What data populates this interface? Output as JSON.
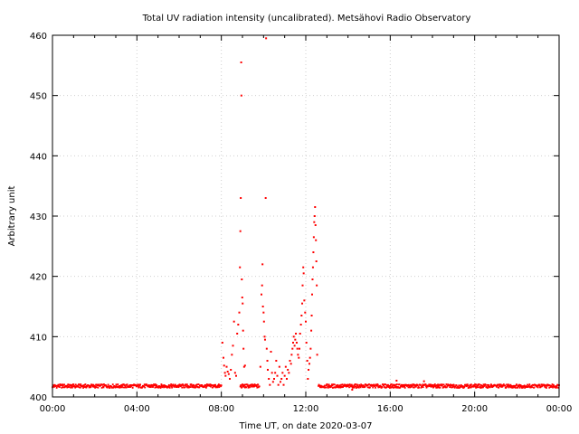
{
  "chart_data": {
    "type": "scatter",
    "title": "Total UV radiation intensity (uncalibrated). Metsähovi Radio Observatory",
    "xlabel": "Time UT, on date 2020-03-07",
    "ylabel": "Arbitrary unit",
    "xlim": [
      0,
      24
    ],
    "ylim": [
      400,
      460
    ],
    "x_ticks": [
      0,
      4,
      8,
      12,
      16,
      20,
      24
    ],
    "x_tick_labels": [
      "00:00",
      "04:00",
      "08:00",
      "12:00",
      "16:00",
      "20:00",
      "00:00"
    ],
    "y_ticks": [
      400,
      410,
      420,
      430,
      440,
      450,
      460
    ],
    "y_tick_labels": [
      "400",
      "410",
      "420",
      "430",
      "440",
      "450",
      "460"
    ],
    "grid": true,
    "marker_color": "#ff0000",
    "series": [
      {
        "baseline": 401.8,
        "baseline_ranges": [
          [
            0,
            8.0
          ],
          [
            8.9,
            9.8
          ],
          [
            12.6,
            24
          ]
        ],
        "x_unit": "hours",
        "points": [
          [
            8.05,
            409.0
          ],
          [
            8.1,
            406.5
          ],
          [
            8.13,
            405.2
          ],
          [
            8.17,
            404.0
          ],
          [
            8.2,
            403.5
          ],
          [
            8.25,
            405.0
          ],
          [
            8.3,
            404.2
          ],
          [
            8.35,
            403.8
          ],
          [
            8.4,
            403.0
          ],
          [
            8.45,
            404.5
          ],
          [
            8.5,
            407.0
          ],
          [
            8.55,
            408.5
          ],
          [
            8.6,
            412.5
          ],
          [
            8.65,
            404.0
          ],
          [
            8.7,
            403.5
          ],
          [
            8.75,
            410.5
          ],
          [
            8.8,
            412.0
          ],
          [
            8.85,
            414.0
          ],
          [
            8.88,
            421.5
          ],
          [
            8.9,
            427.5
          ],
          [
            8.92,
            433.0
          ],
          [
            8.94,
            455.5
          ],
          [
            8.95,
            450.0
          ],
          [
            8.97,
            419.5
          ],
          [
            8.99,
            416.5
          ],
          [
            9.01,
            415.5
          ],
          [
            9.03,
            411.0
          ],
          [
            9.05,
            408.0
          ],
          [
            9.08,
            405.0
          ],
          [
            9.1,
            402.0
          ],
          [
            9.12,
            405.2
          ],
          [
            9.85,
            405.0
          ],
          [
            9.9,
            417.0
          ],
          [
            9.93,
            418.5
          ],
          [
            9.95,
            422.0
          ],
          [
            9.97,
            415.0
          ],
          [
            10.0,
            414.0
          ],
          [
            10.02,
            412.5
          ],
          [
            10.05,
            410.0
          ],
          [
            10.07,
            409.5
          ],
          [
            10.1,
            433.0
          ],
          [
            10.12,
            459.5
          ],
          [
            10.15,
            408.0
          ],
          [
            10.18,
            406.0
          ],
          [
            10.2,
            404.5
          ],
          [
            10.25,
            403.0
          ],
          [
            10.3,
            402.0
          ],
          [
            10.35,
            407.5
          ],
          [
            10.4,
            404.0
          ],
          [
            10.45,
            402.5
          ],
          [
            10.5,
            403.0
          ],
          [
            10.55,
            404.0
          ],
          [
            10.6,
            406.0
          ],
          [
            10.65,
            403.5
          ],
          [
            10.7,
            402.0
          ],
          [
            10.75,
            405.0
          ],
          [
            10.8,
            402.5
          ],
          [
            10.85,
            403.0
          ],
          [
            10.9,
            404.0
          ],
          [
            10.95,
            402.0
          ],
          [
            11.0,
            403.5
          ],
          [
            11.05,
            405.0
          ],
          [
            11.1,
            403.0
          ],
          [
            11.15,
            404.5
          ],
          [
            11.2,
            404.0
          ],
          [
            11.25,
            406.0
          ],
          [
            11.3,
            405.5
          ],
          [
            11.33,
            407.0
          ],
          [
            11.37,
            408.0
          ],
          [
            11.4,
            409.0
          ],
          [
            11.43,
            410.0
          ],
          [
            11.47,
            408.5
          ],
          [
            11.5,
            409.5
          ],
          [
            11.53,
            410.5
          ],
          [
            11.57,
            409.0
          ],
          [
            11.6,
            408.0
          ],
          [
            11.63,
            407.0
          ],
          [
            11.67,
            406.5
          ],
          [
            11.7,
            408.0
          ],
          [
            11.73,
            410.5
          ],
          [
            11.77,
            412.0
          ],
          [
            11.8,
            413.5
          ],
          [
            11.83,
            415.5
          ],
          [
            11.85,
            418.5
          ],
          [
            11.88,
            421.5
          ],
          [
            11.9,
            420.5
          ],
          [
            11.93,
            416.0
          ],
          [
            11.97,
            414.0
          ],
          [
            12.0,
            412.5
          ],
          [
            12.03,
            409.0
          ],
          [
            12.07,
            406.0
          ],
          [
            12.1,
            403.0
          ],
          [
            12.13,
            404.5
          ],
          [
            12.17,
            405.5
          ],
          [
            12.2,
            406.5
          ],
          [
            12.23,
            408.0
          ],
          [
            12.26,
            411.0
          ],
          [
            12.28,
            413.5
          ],
          [
            12.3,
            417.0
          ],
          [
            12.32,
            419.5
          ],
          [
            12.34,
            421.5
          ],
          [
            12.36,
            424.0
          ],
          [
            12.38,
            426.5
          ],
          [
            12.4,
            429.0
          ],
          [
            12.42,
            430.0
          ],
          [
            12.44,
            431.5
          ],
          [
            12.46,
            428.5
          ],
          [
            12.48,
            426.0
          ],
          [
            12.5,
            422.5
          ],
          [
            12.52,
            418.5
          ],
          [
            12.54,
            407.0
          ],
          [
            14.2,
            401.2
          ],
          [
            16.3,
            402.7
          ],
          [
            17.6,
            402.6
          ]
        ]
      }
    ]
  }
}
